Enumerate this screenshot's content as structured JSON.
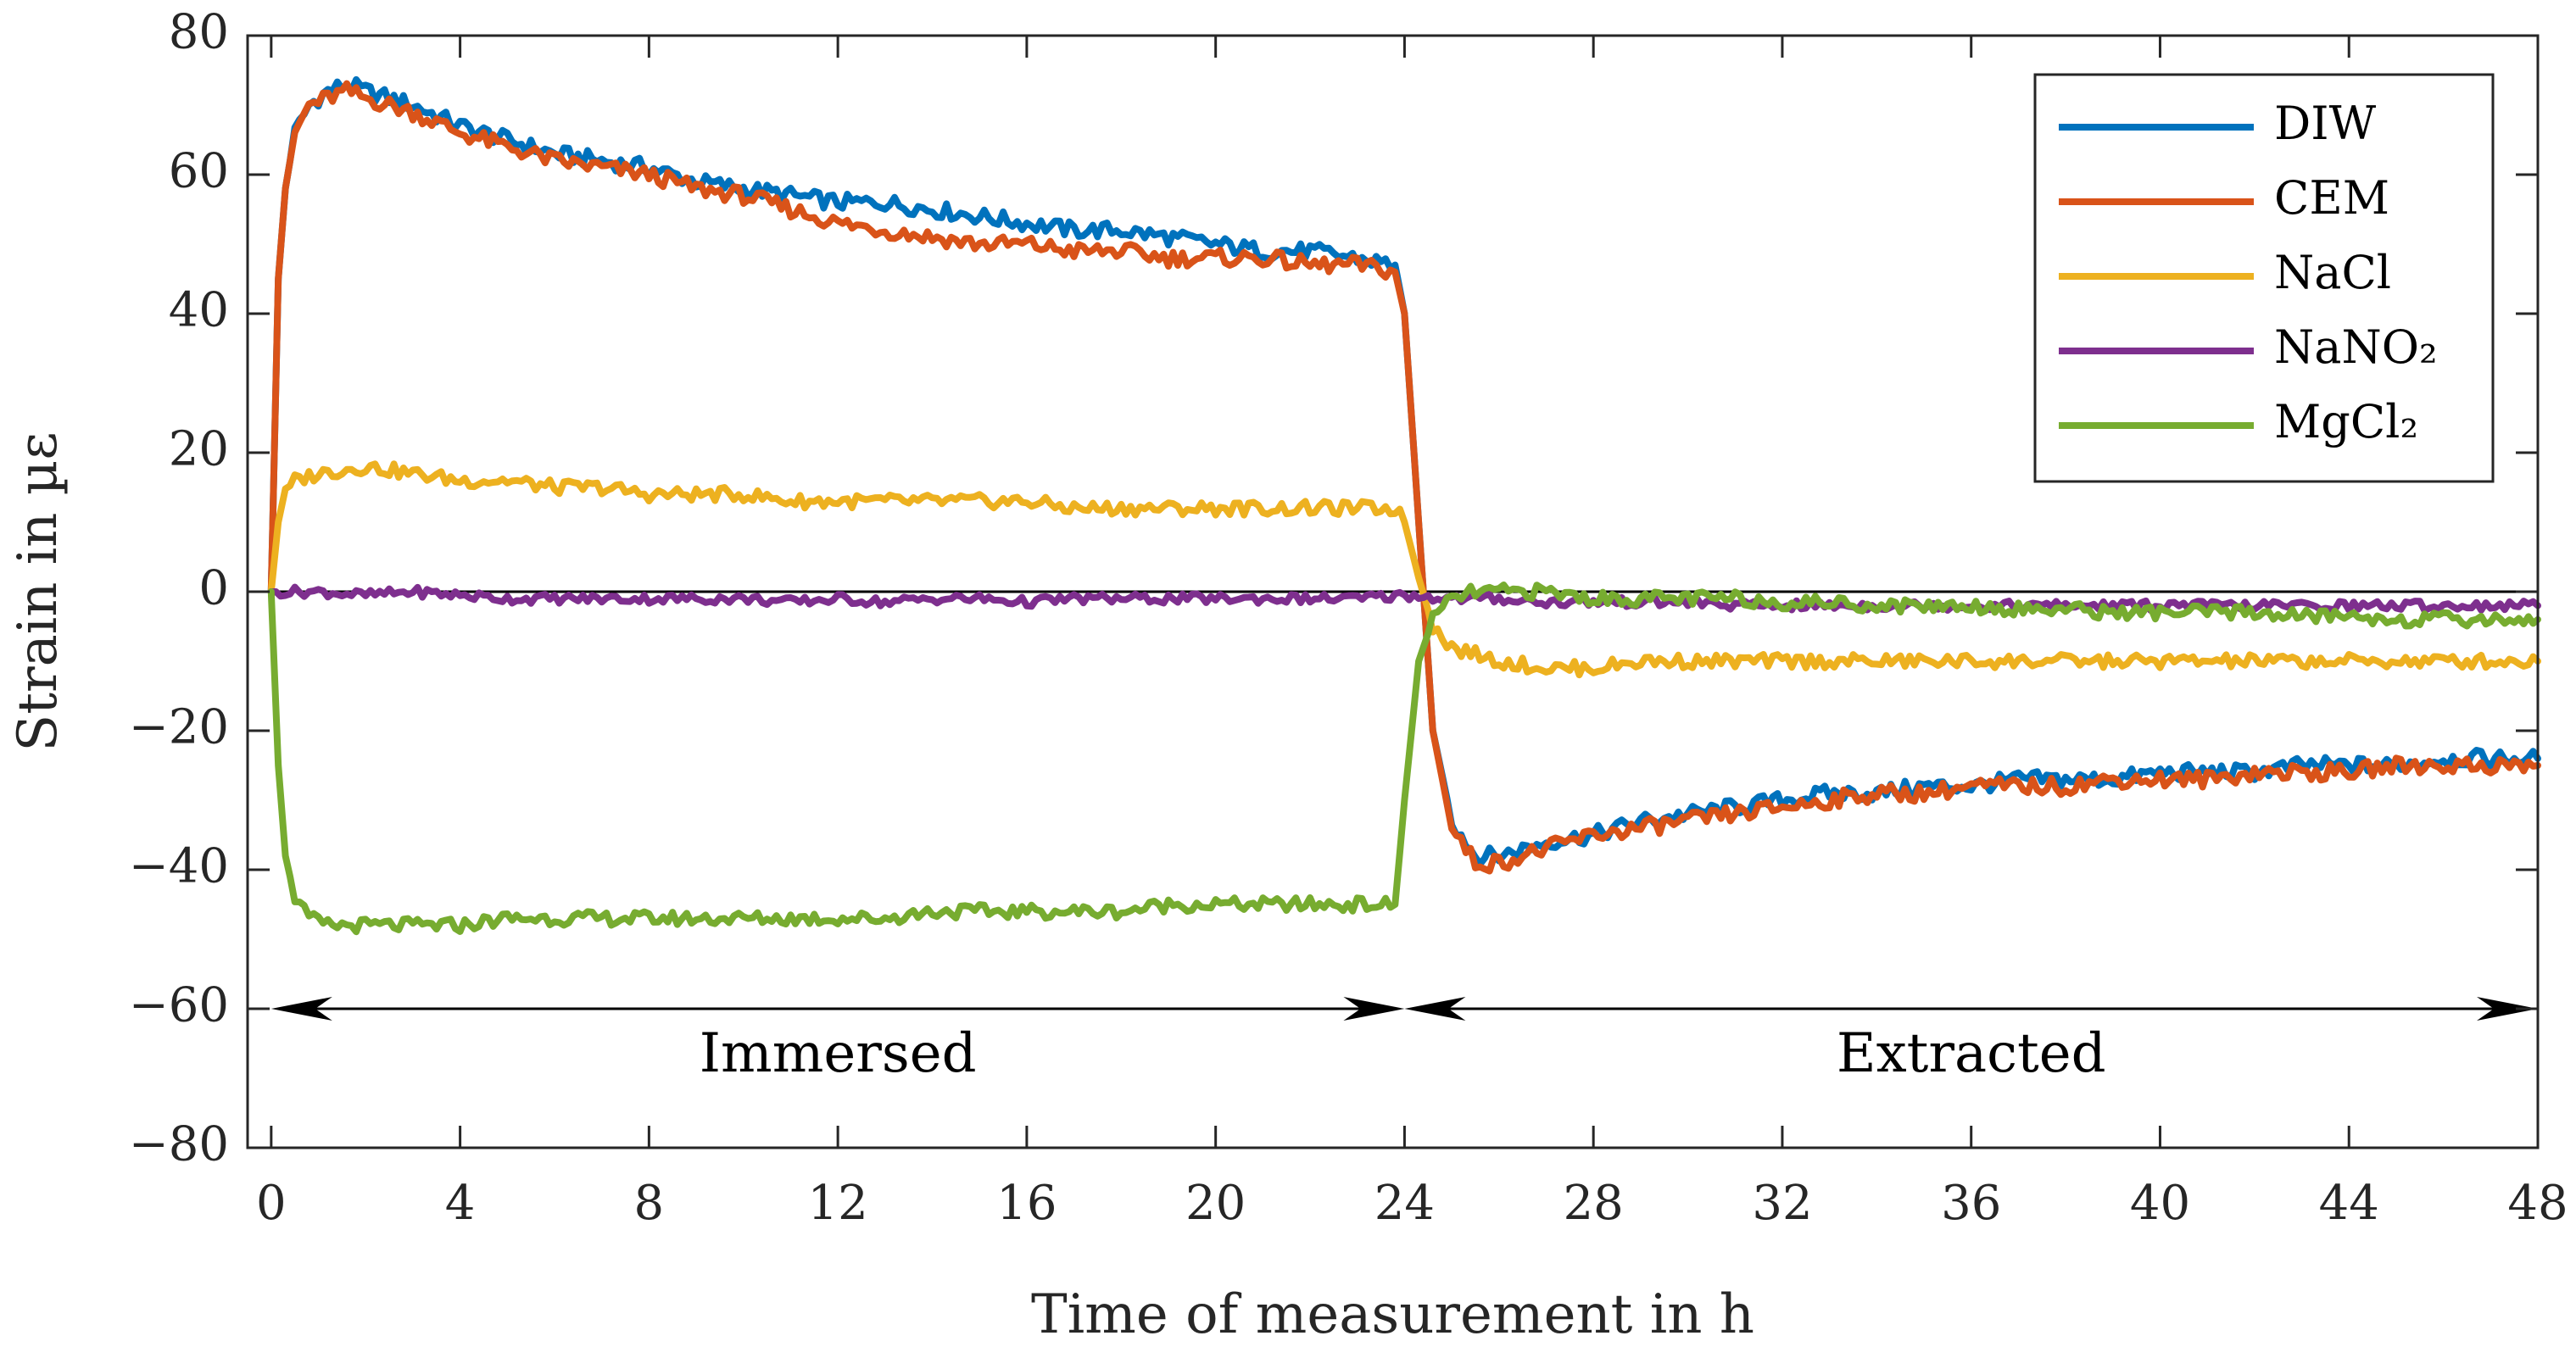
{
  "chart_data": {
    "type": "line",
    "title": "",
    "xlabel": "Time of measurement in h",
    "ylabel": "Strain in µε",
    "xlim": [
      -0.5,
      48
    ],
    "ylim": [
      -80,
      80
    ],
    "xticks": [
      0,
      4,
      8,
      12,
      16,
      20,
      24,
      28,
      32,
      36,
      40,
      44,
      48
    ],
    "yticks": [
      80,
      60,
      40,
      20,
      0,
      -20,
      -40,
      -60,
      -80
    ],
    "xtick_labels": [
      "0",
      "4",
      "8",
      "12",
      "16",
      "20",
      "24",
      "28",
      "32",
      "36",
      "40",
      "44",
      "48"
    ],
    "ytick_labels": [
      "80",
      "60",
      "40",
      "20",
      "0",
      "−20",
      "−40",
      "−60",
      "−80"
    ],
    "grid": false,
    "legend_position": "top-right",
    "zero_line": 0,
    "annotations": [
      {
        "label": "Immersed",
        "x_start": 0,
        "x_end": 24,
        "y": -60,
        "label_y": -67
      },
      {
        "label": "Extracted",
        "x_start": 24,
        "x_end": 48,
        "y": -60,
        "label_y": -67
      }
    ],
    "series": [
      {
        "name": "DIW",
        "color": "#0072BD",
        "x": [
          0,
          0.15,
          0.3,
          0.5,
          0.8,
          1.2,
          1.6,
          2,
          3,
          4,
          5,
          6,
          7,
          8,
          9,
          10,
          11,
          12,
          13,
          14,
          15,
          16,
          17,
          18,
          19,
          20,
          21,
          22,
          23,
          23.8,
          24,
          24.3,
          24.6,
          25,
          25.5,
          26,
          27,
          28,
          29,
          30,
          31,
          32,
          33,
          34,
          35,
          36,
          37,
          38,
          39,
          40,
          41,
          42,
          43,
          44,
          45,
          46,
          47,
          48
        ],
        "values": [
          0,
          45,
          58,
          66,
          70,
          72,
          73,
          72,
          70,
          67,
          65,
          63,
          62,
          61,
          59,
          58,
          57,
          56,
          56,
          55,
          54,
          53,
          52,
          52,
          51,
          50,
          49,
          49,
          48,
          47,
          40,
          10,
          -20,
          -33,
          -38,
          -38,
          -36,
          -35,
          -33,
          -32,
          -31,
          -30,
          -29,
          -29,
          -28,
          -28,
          -27,
          -27,
          -27,
          -26,
          -26,
          -26,
          -25,
          -25,
          -25,
          -24,
          -24,
          -24
        ]
      },
      {
        "name": "CEM",
        "color": "#D95319",
        "x": [
          0,
          0.15,
          0.3,
          0.5,
          0.8,
          1.2,
          1.6,
          2,
          3,
          4,
          5,
          6,
          7,
          8,
          9,
          10,
          11,
          12,
          13,
          14,
          15,
          16,
          17,
          18,
          19,
          20,
          21,
          22,
          23,
          23.8,
          24,
          24.3,
          24.6,
          25,
          25.5,
          26,
          27,
          28,
          29,
          30,
          31,
          32,
          33,
          34,
          35,
          36,
          37,
          38,
          39,
          40,
          41,
          42,
          43,
          44,
          45,
          46,
          47,
          48
        ],
        "values": [
          0,
          45,
          58,
          66,
          70,
          71,
          72,
          71,
          69,
          66,
          64,
          62,
          61,
          60,
          58,
          57,
          55,
          53,
          52,
          51,
          50,
          50,
          49,
          49,
          48,
          48,
          48,
          47,
          47,
          46,
          40,
          10,
          -20,
          -34,
          -39,
          -39,
          -37,
          -35,
          -34,
          -33,
          -32,
          -31,
          -30,
          -29,
          -29,
          -28,
          -28,
          -28,
          -27,
          -27,
          -27,
          -26,
          -26,
          -26,
          -25,
          -25,
          -25,
          -25
        ]
      },
      {
        "name": "NaCl",
        "color": "#EDB120",
        "x": [
          0,
          0.15,
          0.3,
          0.5,
          1,
          2,
          3,
          4,
          5,
          6,
          7,
          8,
          9,
          10,
          11,
          12,
          13,
          14,
          15,
          16,
          17,
          18,
          19,
          20,
          21,
          22,
          23,
          23.8,
          24,
          24.3,
          24.6,
          25,
          26,
          27,
          28,
          29,
          30,
          31,
          32,
          33,
          34,
          35,
          36,
          37,
          38,
          39,
          40,
          41,
          42,
          43,
          44,
          45,
          46,
          47,
          48
        ],
        "values": [
          0,
          10,
          14,
          16,
          17,
          18,
          17,
          16,
          16,
          15,
          15,
          14,
          14,
          14,
          13,
          13,
          13,
          13,
          13,
          13,
          12,
          12,
          12,
          12,
          12,
          12,
          12,
          12,
          10,
          2,
          -5,
          -8,
          -10,
          -11,
          -11,
          -10,
          -10,
          -10,
          -10,
          -10,
          -10,
          -10,
          -10,
          -10,
          -10,
          -10,
          -10,
          -10,
          -10,
          -10,
          -10,
          -10,
          -10,
          -10,
          -10
        ]
      },
      {
        "name": "NaNO₂",
        "color": "#7E2F8E",
        "x": [
          0,
          1,
          2,
          3,
          4,
          5,
          6,
          7,
          8,
          9,
          10,
          11,
          12,
          13,
          14,
          15,
          16,
          17,
          18,
          19,
          20,
          21,
          22,
          23,
          24,
          25,
          26,
          27,
          28,
          29,
          30,
          31,
          32,
          33,
          34,
          35,
          36,
          37,
          38,
          39,
          40,
          41,
          42,
          43,
          44,
          45,
          46,
          47,
          48
        ],
        "values": [
          0,
          0,
          -0.5,
          0,
          -0.5,
          -1,
          -1,
          -1,
          -1,
          -1,
          -1,
          -1.5,
          -1,
          -1.5,
          -1,
          -1,
          -1.5,
          -1,
          -1,
          -1,
          -1,
          -1,
          -1,
          -1,
          -0.5,
          -1,
          -1,
          -1.5,
          -1.5,
          -1.5,
          -1.5,
          -2,
          -2,
          -2,
          -2,
          -2,
          -2,
          -2,
          -2,
          -2,
          -2,
          -2,
          -2,
          -2,
          -2,
          -2,
          -2,
          -2,
          -2
        ]
      },
      {
        "name": "MgCl₂",
        "color": "#77AC30",
        "x": [
          0,
          0.15,
          0.3,
          0.5,
          0.8,
          1.2,
          2,
          3,
          4,
          5,
          6,
          7,
          8,
          9,
          10,
          11,
          12,
          13,
          14,
          15,
          16,
          17,
          18,
          19,
          20,
          21,
          22,
          23,
          23.8,
          24,
          24.3,
          24.6,
          25,
          25.5,
          26,
          27,
          28,
          29,
          30,
          31,
          32,
          33,
          34,
          35,
          36,
          37,
          38,
          39,
          40,
          41,
          42,
          43,
          44,
          45,
          46,
          47,
          48
        ],
        "values": [
          0,
          -25,
          -38,
          -44,
          -47,
          -48,
          -48,
          -48,
          -48,
          -47,
          -47,
          -47,
          -47,
          -47,
          -47,
          -47,
          -47,
          -47,
          -46,
          -46,
          -46,
          -46,
          -46,
          -45,
          -45,
          -45,
          -45,
          -45,
          -45,
          -30,
          -10,
          -4,
          -1,
          0,
          0,
          0,
          -1,
          -1,
          -1,
          -1,
          -1.5,
          -1.5,
          -2,
          -2,
          -2,
          -2.5,
          -2.5,
          -3,
          -3,
          -3,
          -3,
          -3.5,
          -3.5,
          -4,
          -4,
          -4,
          -4
        ]
      }
    ]
  }
}
